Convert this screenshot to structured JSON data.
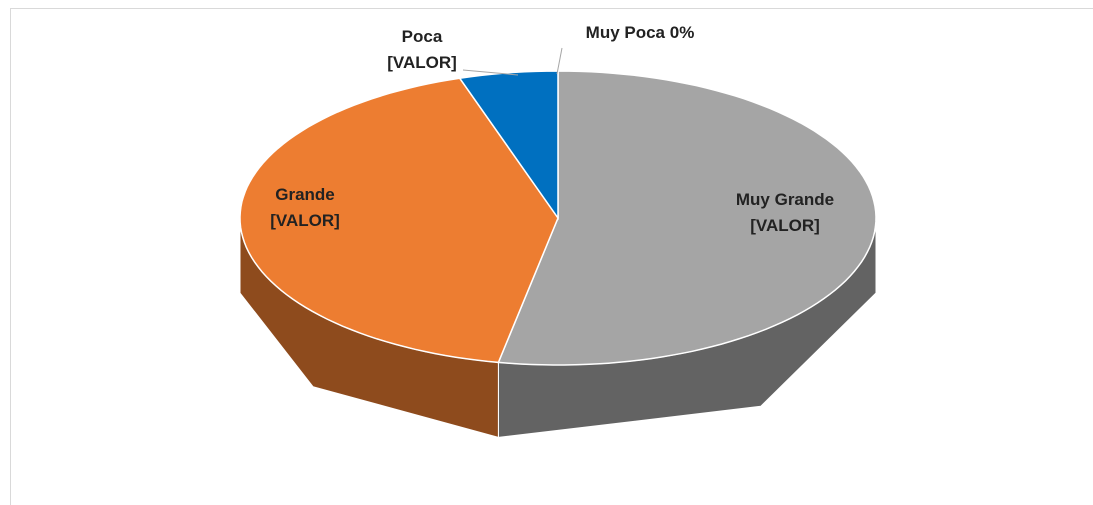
{
  "chart_data": {
    "type": "pie3d",
    "categories": [
      "Muy Grande",
      "Grande",
      "Poca",
      "Muy Poca"
    ],
    "values": [
      53,
      42,
      5,
      0
    ],
    "value_labels": [
      "[VALOR]",
      "[VALOR]",
      "[VALOR]",
      "0%"
    ],
    "colors": [
      "#a5a5a5",
      "#ed7d31",
      "#0070c0",
      "#ffc000"
    ]
  }
}
